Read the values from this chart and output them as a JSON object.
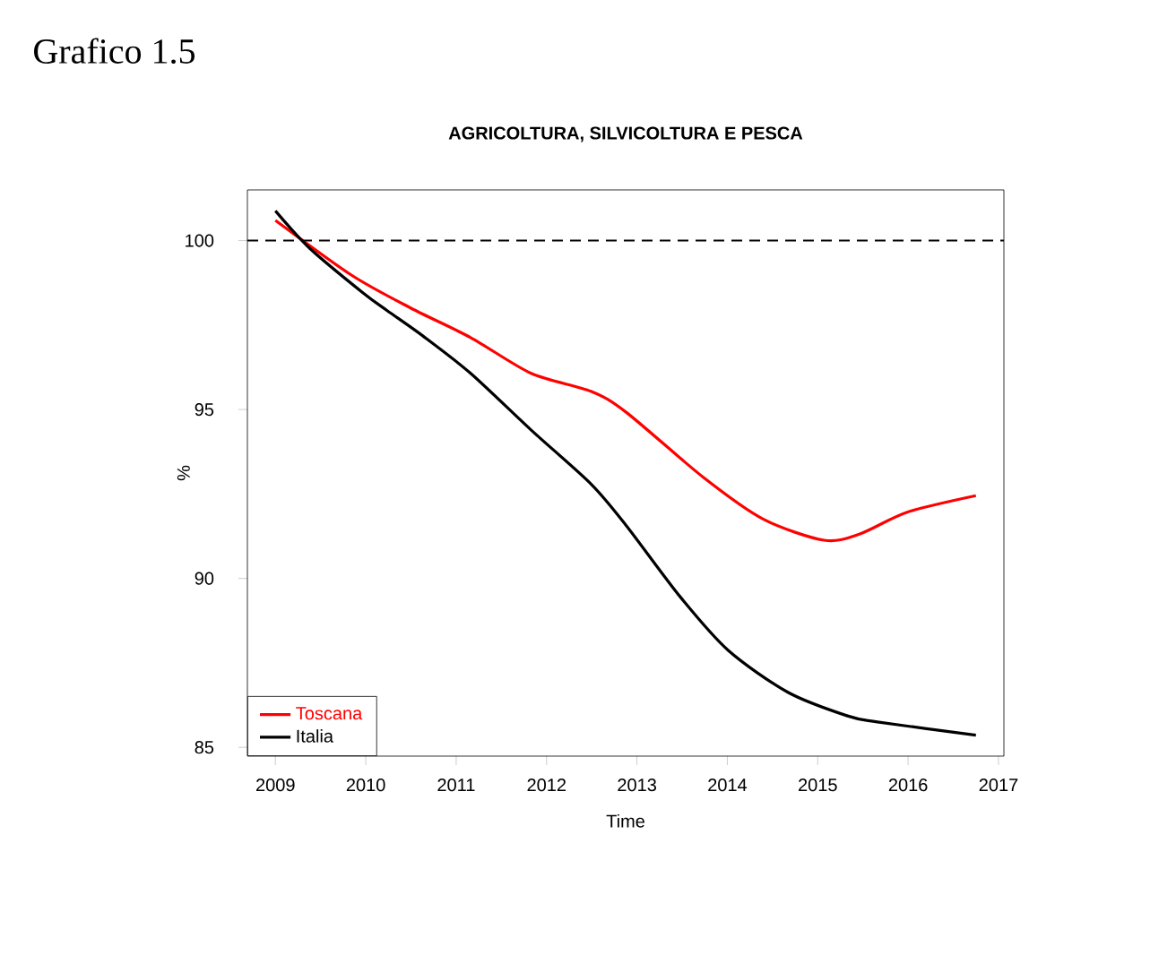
{
  "chart_data": {
    "type": "line",
    "title": "AGRICOLTURA, SILVICOLTURA E PESCA",
    "xlabel": "Time",
    "ylabel": "%",
    "annotations": [
      "Grafico 1.5"
    ],
    "series": [
      {
        "name": "Toscana",
        "color": "#ff0000",
        "x": [
          2009,
          2009.84,
          2010.5,
          2011.16,
          2011.83,
          2012.49,
          2012.88,
          2013.74,
          2014.4,
          2015.07,
          2015.46,
          2015.99,
          2016.75
        ],
        "values": [
          100.6,
          98.98,
          98.0,
          97.13,
          96.07,
          95.54,
          94.92,
          92.98,
          91.75,
          91.13,
          91.31,
          91.96,
          92.45
        ]
      },
      {
        "name": "Italia",
        "color": "#000000",
        "x": [
          2009,
          2009.38,
          2009.97,
          2010.24,
          2010.63,
          2011.16,
          2011.83,
          2012.49,
          2012.88,
          2013.48,
          2014.01,
          2014.67,
          2015.33,
          2015.66,
          2016.75
        ],
        "values": [
          100.88,
          99.77,
          98.45,
          97.92,
          97.18,
          96.07,
          94.39,
          92.8,
          91.57,
          89.45,
          87.87,
          86.63,
          85.93,
          85.75,
          85.36
        ]
      }
    ],
    "xlim": [
      2008.69,
      2017.06
    ],
    "ylim": [
      84.74,
      101.5
    ],
    "xticks": [
      2009,
      2010,
      2011,
      2012,
      2013,
      2014,
      2015,
      2016,
      2017
    ],
    "yticks": [
      85,
      90,
      95,
      100
    ],
    "ref_lines": [
      {
        "axis": "y",
        "value": 100,
        "line_style": "dashed"
      }
    ],
    "legend": "bottom left",
    "line_style": "solid",
    "marker": "none",
    "grid": false
  }
}
